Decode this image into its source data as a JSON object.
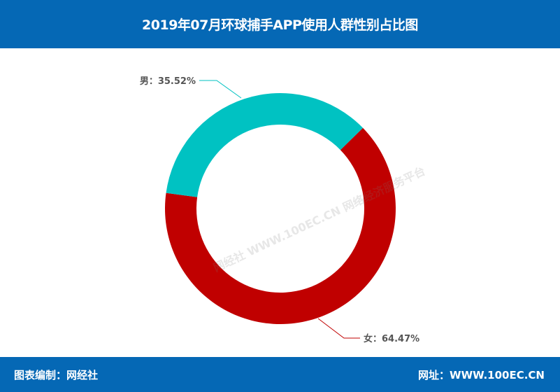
{
  "header": {
    "title": "2019年07月环球捕手APP使用人群性别占比图"
  },
  "footer": {
    "left": "图表编制：网经社",
    "right": "网址：WWW.100EC.CN"
  },
  "watermark": {
    "text": "网经社 WWW.100EC.CN 网络经济服务平台"
  },
  "chart_data": {
    "type": "pie",
    "donut": true,
    "title": "2019年07月环球捕手APP使用人群性别占比图",
    "categories": [
      "男",
      "女"
    ],
    "values": [
      35.52,
      64.47
    ],
    "labels": [
      "男：35.52%",
      "女：64.47%"
    ],
    "colors": [
      "#00c2c2",
      "#c00000"
    ]
  }
}
